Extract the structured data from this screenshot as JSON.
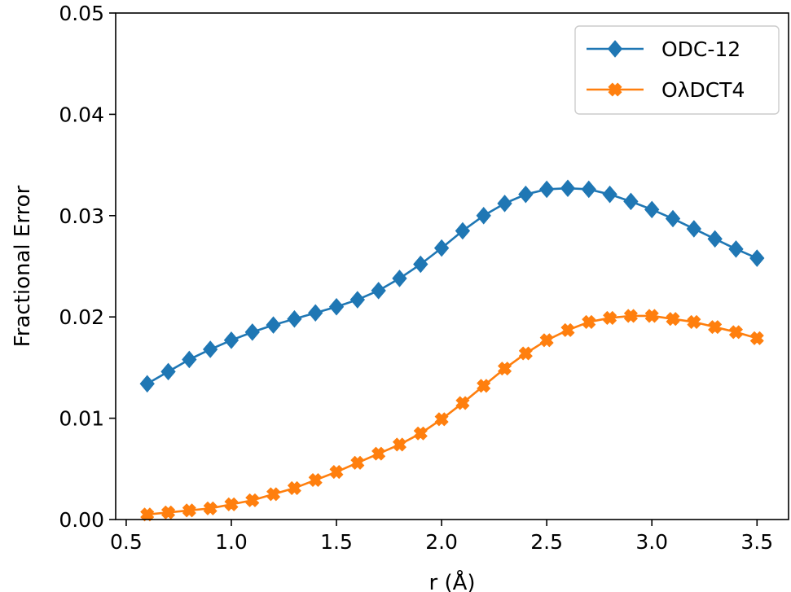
{
  "chart_data": {
    "type": "line",
    "xlabel": "r (Å)",
    "ylabel": "Fractional Error",
    "xlim": [
      0.45,
      3.65
    ],
    "ylim": [
      0.0,
      0.05
    ],
    "xticks": [
      "0.5",
      "1.0",
      "1.5",
      "2.0",
      "2.5",
      "3.0",
      "3.5"
    ],
    "yticks": [
      "0.00",
      "0.01",
      "0.02",
      "0.03",
      "0.04",
      "0.05"
    ],
    "grid": false,
    "legend_position": "top-right",
    "x": [
      0.6,
      0.7,
      0.8,
      0.9,
      1.0,
      1.1,
      1.2,
      1.3,
      1.4,
      1.5,
      1.6,
      1.7,
      1.8,
      1.9,
      2.0,
      2.1,
      2.2,
      2.3,
      2.4,
      2.5,
      2.6,
      2.7,
      2.8,
      2.9,
      3.0,
      3.1,
      3.2,
      3.3,
      3.4,
      3.5
    ],
    "series": [
      {
        "name": "ODC-12",
        "color": "#1f77b4",
        "marker": "diamond",
        "values": [
          0.0134,
          0.0146,
          0.0158,
          0.0168,
          0.0177,
          0.0185,
          0.0192,
          0.0198,
          0.0204,
          0.021,
          0.0217,
          0.0226,
          0.0238,
          0.0252,
          0.0268,
          0.0285,
          0.03,
          0.0312,
          0.0321,
          0.0326,
          0.0327,
          0.0326,
          0.0321,
          0.0314,
          0.0306,
          0.0297,
          0.0287,
          0.0277,
          0.0267,
          0.0258
        ]
      },
      {
        "name": "OλDCT4",
        "color": "#ff7f0e",
        "marker": "x-filled",
        "values": [
          0.0005,
          0.0007,
          0.0009,
          0.0011,
          0.0015,
          0.0019,
          0.0025,
          0.0031,
          0.0039,
          0.0047,
          0.0056,
          0.0065,
          0.0074,
          0.0085,
          0.0099,
          0.0115,
          0.0132,
          0.0149,
          0.0164,
          0.0177,
          0.0187,
          0.0195,
          0.0199,
          0.0201,
          0.0201,
          0.0198,
          0.0195,
          0.019,
          0.0185,
          0.0179
        ]
      }
    ]
  }
}
